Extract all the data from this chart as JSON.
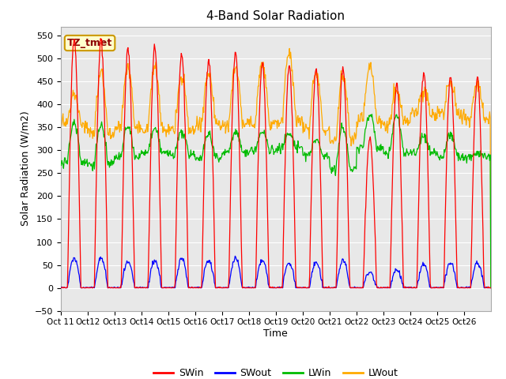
{
  "title": "4-Band Solar Radiation",
  "ylabel": "Solar Radiation (W/m2)",
  "xlabel": "Time",
  "annotation": "TZ_tmet",
  "ylim": [
    -50,
    570
  ],
  "xlim": [
    0,
    16
  ],
  "x_tick_labels": [
    "Oct 11",
    "Oct 12",
    "Oct 13",
    "Oct 14",
    "Oct 15",
    "Oct 16",
    "Oct 17",
    "Oct 18",
    "Oct 19",
    "Oct 20",
    "Oct 21",
    "Oct 22",
    "Oct 23",
    "Oct 24",
    "Oct 25",
    "Oct 26"
  ],
  "colors": {
    "SWin": "#ff0000",
    "SWout": "#0000ff",
    "LWin": "#00bb00",
    "LWout": "#ffaa00"
  },
  "bg_color": "#e8e8e8",
  "legend_labels": [
    "SWin",
    "SWout",
    "LWin",
    "LWout"
  ],
  "yticks": [
    -50,
    0,
    50,
    100,
    150,
    200,
    250,
    300,
    350,
    400,
    450,
    500,
    550
  ],
  "figsize": [
    6.4,
    4.8
  ],
  "dpi": 100
}
